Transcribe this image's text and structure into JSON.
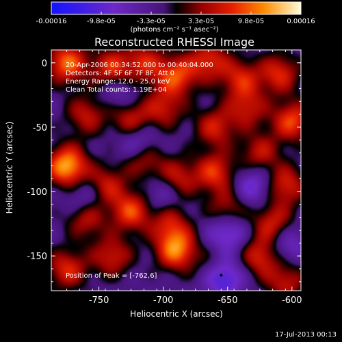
{
  "chart_data": {
    "type": "heatmap",
    "title": "Reconstructed RHESSI Image",
    "xlabel": "Heliocentric X (arcsec)",
    "ylabel": "Heliocentric Y (arcsec)",
    "xlim": [
      -787,
      -593
    ],
    "ylim": [
      -177,
      10
    ],
    "x_ticks": [
      -750,
      -700,
      -650,
      -600
    ],
    "y_ticks": [
      0,
      -50,
      -100,
      -150
    ],
    "colorbar": {
      "ticks": [
        "-0.00016",
        "-9.8e-05",
        "-3.3e-05",
        "3.3e-05",
        "9.8e-05",
        "0.00016"
      ],
      "unit": "(photons cm⁻² s⁻¹ asec⁻²)",
      "range": [
        -0.00016,
        0.00016
      ]
    },
    "annotations": {
      "time_range": "20-Apr-2006 00:34:52.000 to 00:40:04.000",
      "detectors": "Detectors: 4F 5F 6F 7F 8F, Att 0",
      "energy": "Energy Range: 12.0 - 25.0 keV",
      "method": "Clean    Total counts: 1.19E+04"
    },
    "peak": {
      "label": "Position of Peak = [-762,6]",
      "x": -762,
      "y": 6
    },
    "blobs": [
      {
        "x": -775,
        "y": 0,
        "v": 0.8
      },
      {
        "x": -740,
        "y": -5,
        "v": 0.7
      },
      {
        "x": -715,
        "y": 0,
        "v": 0.55
      },
      {
        "x": -690,
        "y": -10,
        "v": 0.7
      },
      {
        "x": -665,
        "y": 2,
        "v": 0.6
      },
      {
        "x": -640,
        "y": -12,
        "v": 0.55
      },
      {
        "x": -610,
        "y": -8,
        "v": 0.6
      },
      {
        "x": -760,
        "y": -40,
        "v": 0.5
      },
      {
        "x": -725,
        "y": -45,
        "v": 0.6
      },
      {
        "x": -700,
        "y": -35,
        "v": 0.5
      },
      {
        "x": -660,
        "y": -50,
        "v": 0.55
      },
      {
        "x": -635,
        "y": -35,
        "v": 0.5
      },
      {
        "x": -600,
        "y": -45,
        "v": 0.7
      },
      {
        "x": -775,
        "y": -80,
        "v": 1.0
      },
      {
        "x": -745,
        "y": -95,
        "v": 0.55
      },
      {
        "x": -715,
        "y": -75,
        "v": 0.5
      },
      {
        "x": -690,
        "y": -90,
        "v": 0.6
      },
      {
        "x": -660,
        "y": -85,
        "v": 0.65
      },
      {
        "x": -625,
        "y": -70,
        "v": 0.5
      },
      {
        "x": -605,
        "y": -95,
        "v": 0.6
      },
      {
        "x": -760,
        "y": -120,
        "v": 0.55
      },
      {
        "x": -725,
        "y": -115,
        "v": 0.7
      },
      {
        "x": -695,
        "y": -125,
        "v": 0.5
      },
      {
        "x": -650,
        "y": -115,
        "v": 0.55
      },
      {
        "x": -615,
        "y": -125,
        "v": 0.6
      },
      {
        "x": -775,
        "y": -160,
        "v": 0.6
      },
      {
        "x": -740,
        "y": -150,
        "v": 0.55
      },
      {
        "x": -690,
        "y": -145,
        "v": 0.85
      },
      {
        "x": -660,
        "y": -160,
        "v": 0.5
      },
      {
        "x": -625,
        "y": -150,
        "v": 0.6
      },
      {
        "x": -605,
        "y": -170,
        "v": 0.5
      }
    ],
    "holes": [
      {
        "x": -720,
        "y": -60,
        "v": -0.5
      },
      {
        "x": -650,
        "y": -130,
        "v": -0.6
      },
      {
        "x": -655,
        "y": -165,
        "v": -0.9
      },
      {
        "x": -700,
        "y": -100,
        "v": -0.4
      },
      {
        "x": -760,
        "y": -105,
        "v": -0.4
      },
      {
        "x": -630,
        "y": -95,
        "v": -0.45
      },
      {
        "x": -735,
        "y": -20,
        "v": -0.35
      },
      {
        "x": -605,
        "y": -140,
        "v": -0.4
      }
    ]
  },
  "footer": {
    "date": "17-Jul-2013 00:13"
  }
}
